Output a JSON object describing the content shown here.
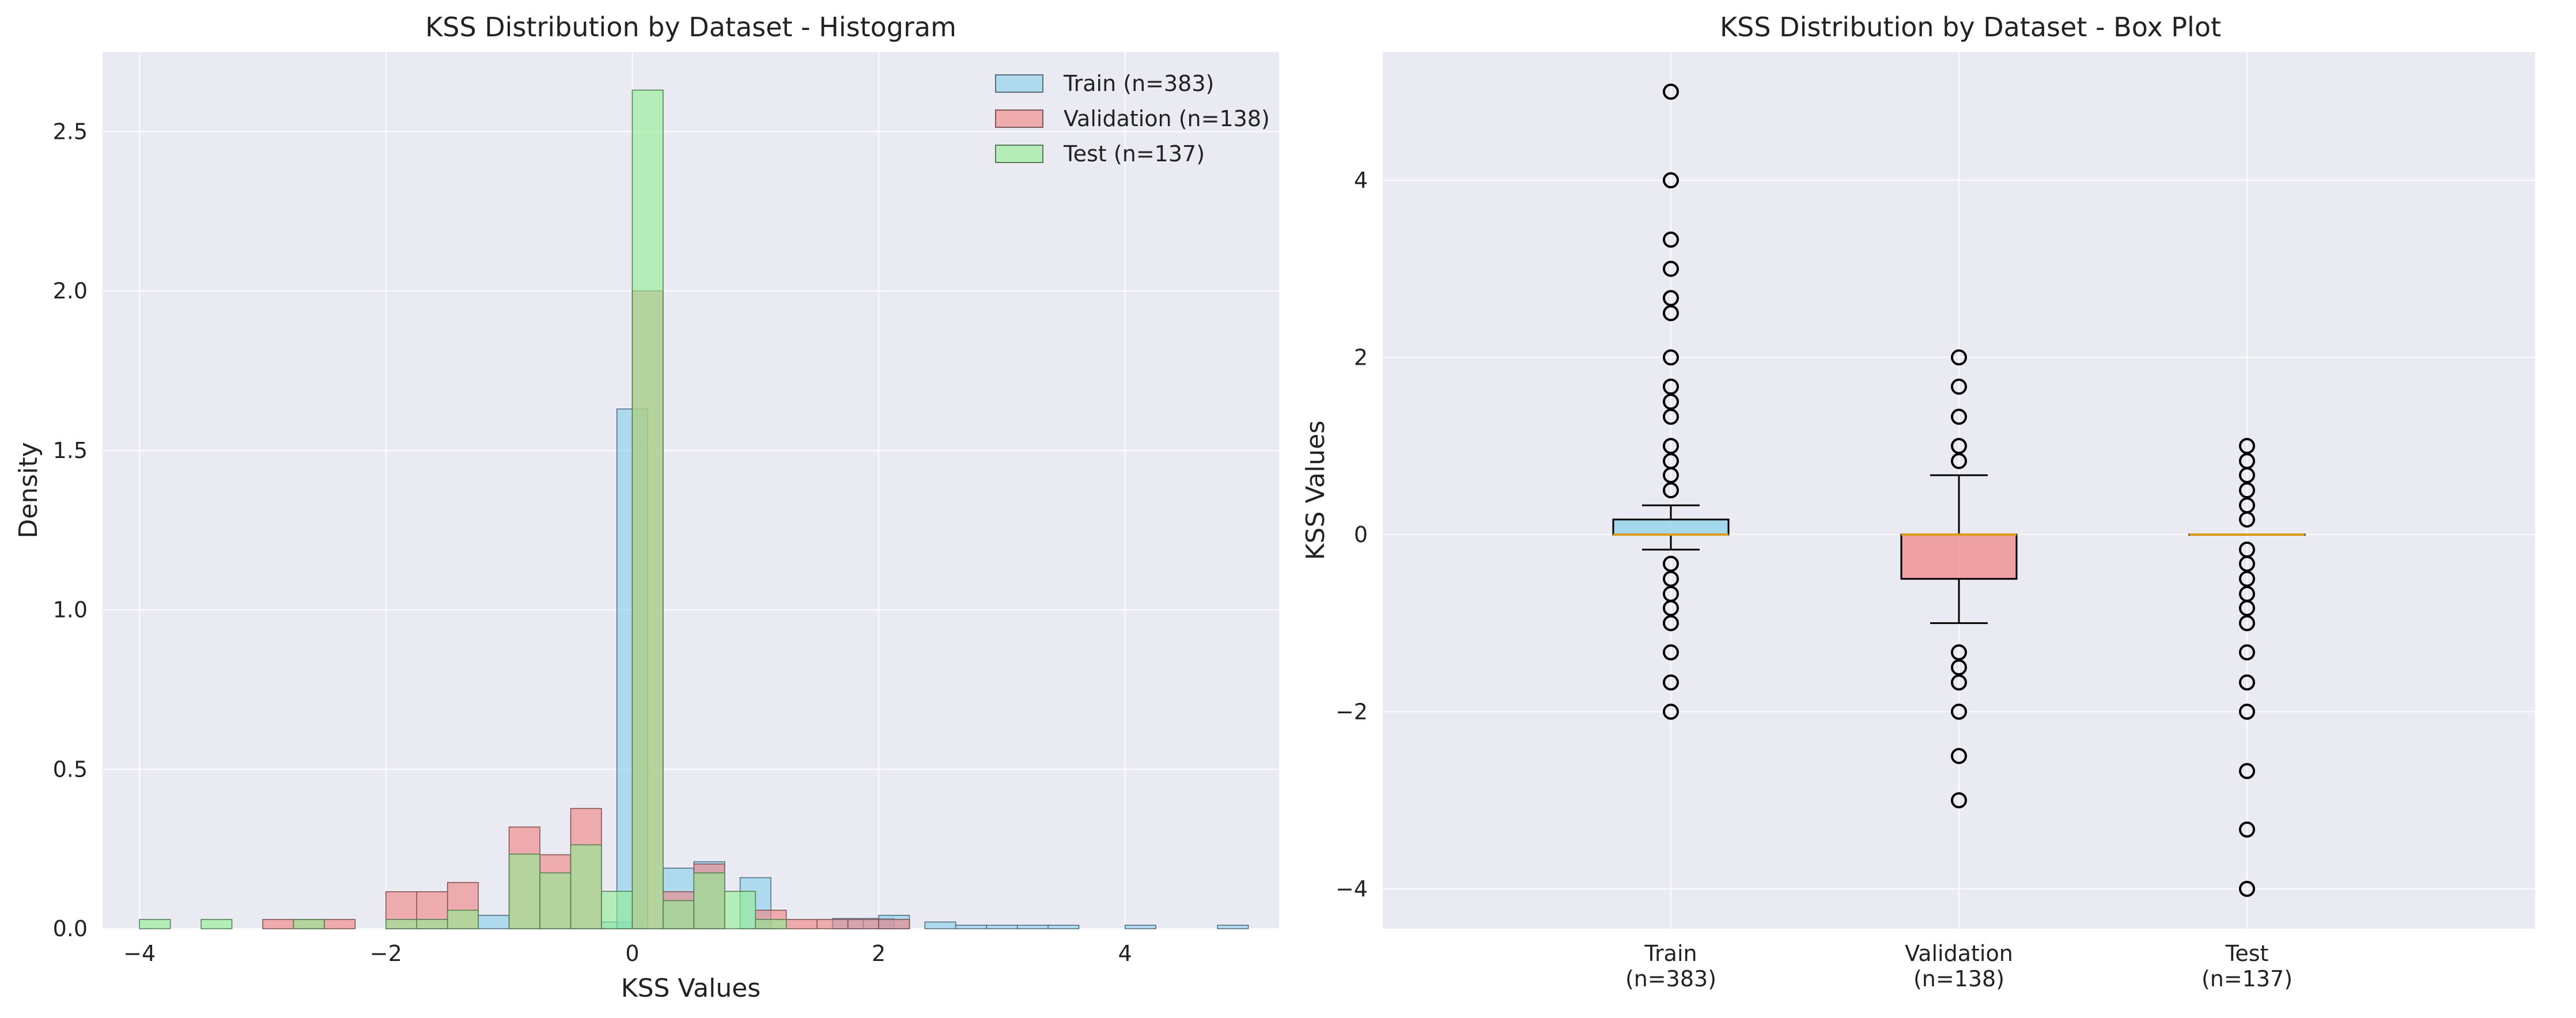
{
  "chart_data": [
    {
      "type": "histogram",
      "title": "KSS Distribution by Dataset - Histogram",
      "xlabel": "KSS Values",
      "ylabel": "Density",
      "xlim": [
        -4.3,
        5.25
      ],
      "ylim": [
        0,
        2.75
      ],
      "xticks": [
        -4,
        -2,
        0,
        2,
        4
      ],
      "yticks": [
        0.0,
        0.5,
        1.0,
        1.5,
        2.0,
        2.5
      ],
      "bin_width": 0.25,
      "grid": true,
      "legend_position": "top-right",
      "series": [
        {
          "name": "Train (n=383)",
          "color": "#87ceeb",
          "bins": [
            {
              "x": -1.25,
              "v": 0.042
            },
            {
              "x": -0.25,
              "v": 0.021
            },
            {
              "x": -0.125,
              "v": 1.63
            },
            {
              "x": 0.25,
              "v": 0.19
            },
            {
              "x": 0.5,
              "v": 0.21
            },
            {
              "x": 0.875,
              "v": 0.16
            },
            {
              "x": 1.625,
              "v": 0.032
            },
            {
              "x": 1.875,
              "v": 0.032
            },
            {
              "x": 2.0,
              "v": 0.042
            },
            {
              "x": 2.375,
              "v": 0.021
            },
            {
              "x": 2.625,
              "v": 0.011
            },
            {
              "x": 2.875,
              "v": 0.011
            },
            {
              "x": 3.125,
              "v": 0.011
            },
            {
              "x": 3.375,
              "v": 0.011
            },
            {
              "x": 4.0,
              "v": 0.011
            },
            {
              "x": 4.75,
              "v": 0.011
            }
          ]
        },
        {
          "name": "Validation (n=138)",
          "color": "#f08080",
          "bins": [
            {
              "x": -3.0,
              "v": 0.029
            },
            {
              "x": -2.75,
              "v": 0.029
            },
            {
              "x": -2.5,
              "v": 0.029
            },
            {
              "x": -2.0,
              "v": 0.116
            },
            {
              "x": -1.75,
              "v": 0.116
            },
            {
              "x": -1.5,
              "v": 0.145
            },
            {
              "x": -1.0,
              "v": 0.319
            },
            {
              "x": -0.75,
              "v": 0.232
            },
            {
              "x": -0.5,
              "v": 0.377
            },
            {
              "x": 0.0,
              "v": 2.0
            },
            {
              "x": 0.25,
              "v": 0.116
            },
            {
              "x": 0.5,
              "v": 0.203
            },
            {
              "x": 1.0,
              "v": 0.058
            },
            {
              "x": 1.25,
              "v": 0.029
            },
            {
              "x": 1.5,
              "v": 0.029
            },
            {
              "x": 1.75,
              "v": 0.029
            },
            {
              "x": 2.0,
              "v": 0.029
            }
          ]
        },
        {
          "name": "Test (n=137)",
          "color": "#90ee90",
          "bins": [
            {
              "x": -4.0,
              "v": 0.029
            },
            {
              "x": -3.5,
              "v": 0.029
            },
            {
              "x": -2.75,
              "v": 0.029
            },
            {
              "x": -2.0,
              "v": 0.029
            },
            {
              "x": -1.75,
              "v": 0.029
            },
            {
              "x": -1.5,
              "v": 0.058
            },
            {
              "x": -1.0,
              "v": 0.234
            },
            {
              "x": -0.75,
              "v": 0.175
            },
            {
              "x": -0.5,
              "v": 0.263
            },
            {
              "x": -0.25,
              "v": 0.117
            },
            {
              "x": 0.0,
              "v": 2.63
            },
            {
              "x": 0.25,
              "v": 0.088
            },
            {
              "x": 0.5,
              "v": 0.175
            },
            {
              "x": 0.75,
              "v": 0.117
            },
            {
              "x": 1.0,
              "v": 0.029
            }
          ]
        }
      ]
    },
    {
      "type": "box",
      "title": "KSS Distribution by Dataset - Box Plot",
      "xlabel": "",
      "ylabel": "KSS Values",
      "ylim": [
        -4.45,
        5.45
      ],
      "yticks": [
        -4,
        -2,
        0,
        2,
        4
      ],
      "grid": true,
      "boxes": [
        {
          "label_line1": "Train",
          "label_line2": "(n=383)",
          "color": "#87ceeb",
          "q1": 0.0,
          "median": 0.0,
          "q3": 0.17,
          "whisker_low": -0.17,
          "whisker_high": 0.33,
          "outliers": [
            5.0,
            4.0,
            3.33,
            3.0,
            2.67,
            2.5,
            2.0,
            1.67,
            1.5,
            1.33,
            1.0,
            0.83,
            0.67,
            0.5,
            -0.33,
            -0.5,
            -0.67,
            -0.83,
            -1.0,
            -1.33,
            -1.67,
            -2.0
          ]
        },
        {
          "label_line1": "Validation",
          "label_line2": "(n=138)",
          "color": "#f08080",
          "q1": -0.5,
          "median": 0.0,
          "q3": 0.0,
          "whisker_low": -1.0,
          "whisker_high": 0.67,
          "outliers": [
            2.0,
            1.67,
            1.33,
            1.0,
            0.83,
            -1.33,
            -1.5,
            -1.67,
            -2.0,
            -2.5,
            -3.0
          ]
        },
        {
          "label_line1": "Test",
          "label_line2": "(n=137)",
          "color": "#90ee90",
          "q1": 0.0,
          "median": 0.0,
          "q3": 0.0,
          "whisker_low": 0.0,
          "whisker_high": 0.0,
          "outliers": [
            1.0,
            0.83,
            0.67,
            0.5,
            0.33,
            0.17,
            -0.17,
            -0.33,
            -0.5,
            -0.67,
            -0.83,
            -1.0,
            -1.33,
            -1.67,
            -2.0,
            -2.67,
            -3.33,
            -4.0
          ]
        }
      ]
    }
  ]
}
